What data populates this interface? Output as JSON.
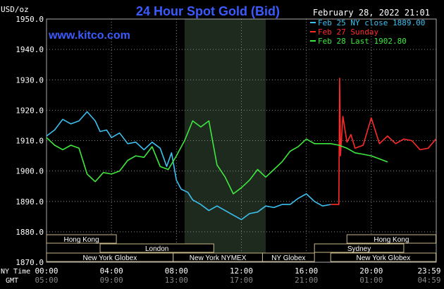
{
  "chart_data": {
    "type": "line",
    "title": "24 Hour Spot Gold (Bid)",
    "source_link": "www.kitco.com",
    "timestamp": "February 28, 2022 21:01",
    "ylabel": "USD/oz",
    "ylim": [
      1870,
      1950
    ],
    "y_ticks": [
      "1950.0",
      "1940.0",
      "1930.0",
      "1920.0",
      "1910.0",
      "1900.0",
      "1890.0",
      "1880.0",
      "1870.0"
    ],
    "x_ticks_ny": [
      "00:00",
      "04:00",
      "08:00",
      "12:00",
      "16:00",
      "20:00",
      "23:59"
    ],
    "x_ticks_gmt": [
      "05:00",
      "09:00",
      "13:00",
      "17:00",
      "21:00",
      "01:00",
      "04:59"
    ],
    "x_axis_label_ny": "NY Time",
    "x_axis_label_gmt": "GMT",
    "grid": true,
    "legend_position": "top-right",
    "colors": {
      "background": "#000000",
      "grid": "#888888",
      "title": "#3b5bff",
      "session_band": "#1f2a1f",
      "market_bar_fill": "#000000",
      "market_bar_border": "#c8b98a"
    },
    "series": [
      {
        "name": "Feb 25 NY close 1889.00",
        "color": "#3cc0f0",
        "x": [
          0,
          0.5,
          1,
          1.5,
          2,
          2.5,
          3,
          3.3,
          3.7,
          4,
          4.5,
          5,
          5.5,
          6,
          6.5,
          7,
          7.4,
          7.7,
          8,
          8.3,
          8.7,
          9,
          9.5,
          10,
          10.5,
          11,
          11.5,
          12,
          12.5,
          13,
          13.5,
          14,
          14.5,
          15,
          15.5,
          16,
          16.5,
          17,
          17.5
        ],
        "y": [
          1911.5,
          1913.5,
          1917,
          1915.5,
          1916.5,
          1919.5,
          1916.5,
          1913,
          1913.5,
          1911,
          1912.5,
          1909,
          1909.5,
          1907,
          1909.5,
          1907.5,
          1901.5,
          1906,
          1897,
          1894,
          1893,
          1890.5,
          1889,
          1887,
          1888.5,
          1887,
          1885.5,
          1884,
          1886,
          1886.5,
          1888.5,
          1888,
          1889,
          1889,
          1891,
          1892.5,
          1890,
          1888.5,
          1889
        ]
      },
      {
        "name": "Feb 27 Sunday",
        "color": "#ff2a2a",
        "x": [
          17.5,
          18,
          18.05,
          18.1,
          18.25,
          18.5,
          18.75,
          19,
          19.5,
          20,
          20.5,
          21,
          21.5,
          22,
          22.5,
          23,
          23.5,
          23.98
        ],
        "y": [
          1889,
          1889,
          1930.5,
          1905,
          1918,
          1909.5,
          1912,
          1907.5,
          1908.5,
          1917.5,
          1909,
          1911.5,
          1909,
          1910.5,
          1910,
          1907,
          1907.5,
          1910.5
        ]
      },
      {
        "name": "Feb 28 Last 1902.80",
        "color": "#3ee83e",
        "x": [
          0,
          0.5,
          1,
          1.5,
          2,
          2.5,
          3,
          3.5,
          4,
          4.5,
          5,
          5.5,
          6,
          6.5,
          7,
          7.5,
          8,
          8.5,
          9,
          9.5,
          10,
          10.5,
          11,
          11.5,
          12,
          12.5,
          13,
          13.5,
          14,
          14.5,
          15,
          15.5,
          16,
          16.5,
          17,
          17.5,
          18,
          18.5,
          19,
          19.5,
          20,
          20.5,
          21
        ],
        "y": [
          1911,
          1908.5,
          1907,
          1908.5,
          1907.5,
          1899,
          1896.5,
          1899.5,
          1899,
          1900,
          1903.5,
          1905,
          1904.5,
          1908,
          1901.5,
          1900.5,
          1905,
          1910,
          1916.5,
          1914.5,
          1916.5,
          1902,
          1898,
          1892.5,
          1894.5,
          1897,
          1900.5,
          1898,
          1900.5,
          1903,
          1906.5,
          1908,
          1910.5,
          1909,
          1909,
          1909,
          1908.5,
          1907.5,
          1906,
          1905.5,
          1905,
          1904,
          1903
        ]
      }
    ],
    "session_band_hours": [
      8.5,
      13.5
    ],
    "market_sessions_row1": [
      {
        "label": "Hong Kong",
        "start": 0,
        "end": 4.3
      },
      {
        "label": "Hong Kong",
        "start": 18.5,
        "end": 23.98
      }
    ],
    "market_sessions_row2": [
      {
        "label": "London",
        "start": 3.3,
        "end": 10.3
      },
      {
        "label": "Sydney",
        "start": 16.5,
        "end": 22.0
      }
    ],
    "market_sessions_row3": [
      {
        "label": "New York Globex",
        "start": 0,
        "end": 7.8
      },
      {
        "label": "New York NYMEX",
        "start": 7.8,
        "end": 13.3
      },
      {
        "label": "NY Globex",
        "start": 13.3,
        "end": 16.5
      },
      {
        "label": "New York Globex",
        "start": 17.5,
        "end": 23.98
      }
    ]
  }
}
